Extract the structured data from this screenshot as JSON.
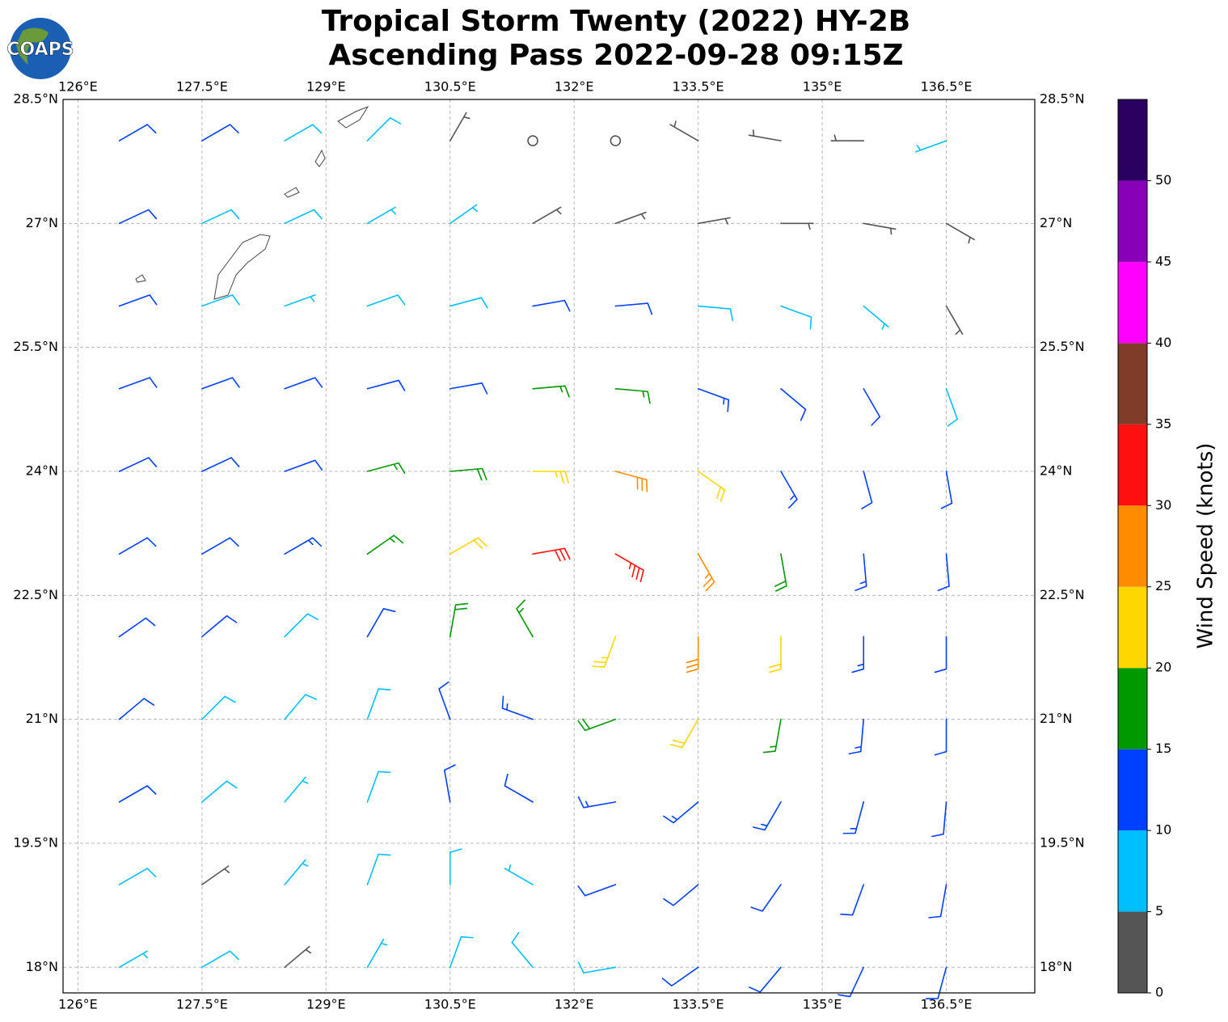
{
  "chart_data": {
    "type": "barbs",
    "title": "Tropical Storm Twenty (2022) HY-2B",
    "subtitle": "Ascending Pass 2022-09-28 09:15Z",
    "logo_text": "COAPS",
    "xlim": [
      125.82,
      137.57
    ],
    "ylim": [
      17.69,
      28.5
    ],
    "xticks": [
      {
        "value": 126,
        "label": "126°E"
      },
      {
        "value": 127.5,
        "label": "127.5°E"
      },
      {
        "value": 129,
        "label": "129°E"
      },
      {
        "value": 130.5,
        "label": "130.5°E"
      },
      {
        "value": 132,
        "label": "132°E"
      },
      {
        "value": 133.5,
        "label": "133.5°E"
      },
      {
        "value": 135,
        "label": "135°E"
      },
      {
        "value": 136.5,
        "label": "136.5°E"
      }
    ],
    "yticks": [
      {
        "value": 28.5,
        "label": "28.5°N"
      },
      {
        "value": 27,
        "label": "27°N"
      },
      {
        "value": 25.5,
        "label": "25.5°N"
      },
      {
        "value": 24,
        "label": "24°N"
      },
      {
        "value": 22.5,
        "label": "22.5°N"
      },
      {
        "value": 21,
        "label": "21°N"
      },
      {
        "value": 19.5,
        "label": "19.5°N"
      },
      {
        "value": 18,
        "label": "18°N"
      }
    ],
    "grid": true,
    "lons": [
      126.5,
      127.5,
      128.5,
      129.5,
      130.5,
      131.5,
      132.5,
      133.5,
      134.5,
      135.5,
      136.5
    ],
    "lats": [
      28,
      27,
      26,
      25,
      24,
      23,
      22,
      21,
      20,
      19,
      18
    ],
    "speed": [
      [
        12,
        12,
        8,
        8,
        4,
        2,
        2,
        3,
        3,
        3,
        7
      ],
      [
        10,
        8,
        8,
        7,
        7,
        4,
        4,
        3,
        4,
        3,
        3
      ],
      [
        12,
        8,
        7,
        8,
        8,
        12,
        12,
        9,
        8,
        7,
        4
      ],
      [
        11,
        11,
        12,
        12,
        12,
        16,
        17,
        13,
        12,
        12,
        8
      ],
      [
        12,
        12,
        12,
        16,
        18,
        24,
        28,
        21,
        14,
        12,
        10
      ],
      [
        12,
        12,
        13,
        17,
        22,
        30,
        33,
        26,
        18,
        13,
        11
      ],
      [
        12,
        10,
        9,
        11,
        18,
        17,
        24,
        28,
        20,
        14,
        12
      ],
      [
        12,
        9,
        8,
        9,
        12,
        14,
        18,
        20,
        17,
        13,
        12
      ],
      [
        10,
        8,
        7,
        9,
        11,
        12,
        13,
        14,
        14,
        13,
        12
      ],
      [
        8,
        4,
        6,
        8,
        9,
        7,
        11,
        12,
        12,
        12,
        11
      ],
      [
        7,
        8,
        4,
        6,
        8,
        9,
        9,
        10,
        11,
        12,
        12
      ]
    ],
    "direction": [
      [
        60,
        60,
        60,
        45,
        30,
        20,
        330,
        300,
        280,
        270,
        250
      ],
      [
        65,
        65,
        65,
        60,
        55,
        60,
        70,
        80,
        90,
        100,
        120
      ],
      [
        70,
        70,
        70,
        70,
        75,
        80,
        85,
        95,
        110,
        130,
        150
      ],
      [
        70,
        70,
        70,
        75,
        80,
        85,
        95,
        110,
        130,
        150,
        160
      ],
      [
        65,
        65,
        70,
        75,
        85,
        90,
        105,
        125,
        150,
        165,
        170
      ],
      [
        60,
        60,
        60,
        55,
        60,
        80,
        120,
        150,
        170,
        175,
        175
      ],
      [
        55,
        50,
        45,
        30,
        10,
        330,
        200,
        180,
        180,
        180,
        180
      ],
      [
        50,
        45,
        40,
        20,
        340,
        290,
        250,
        210,
        190,
        185,
        180
      ],
      [
        60,
        50,
        40,
        20,
        350,
        300,
        260,
        230,
        210,
        195,
        185
      ],
      [
        60,
        55,
        40,
        20,
        0,
        300,
        250,
        230,
        215,
        200,
        190
      ],
      [
        60,
        60,
        50,
        30,
        20,
        320,
        260,
        235,
        220,
        205,
        195
      ]
    ],
    "colorbar": {
      "label": "Wind Speed (knots)",
      "bounds": [
        0,
        5,
        10,
        15,
        20,
        25,
        30,
        35,
        40,
        45,
        50,
        55
      ],
      "ticks": [
        0,
        5,
        10,
        15,
        20,
        25,
        30,
        35,
        40,
        45,
        50
      ],
      "colors": [
        "#555555",
        "#00bfff",
        "#0040ff",
        "#009900",
        "#ffd700",
        "#ff8c00",
        "#ff1010",
        "#803c28",
        "#ff00ff",
        "#8800b8",
        "#2a0060"
      ]
    }
  }
}
